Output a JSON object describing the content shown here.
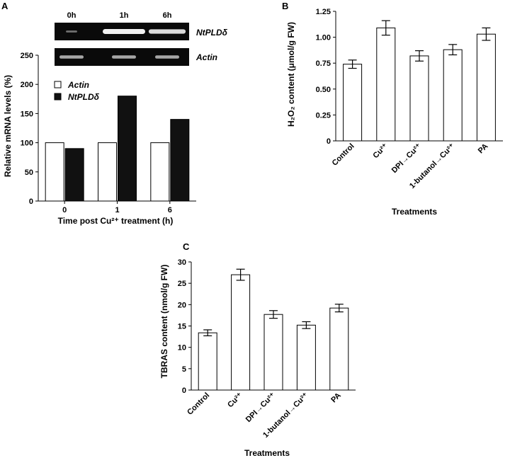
{
  "figure": {
    "panels": [
      "A",
      "B",
      "C"
    ]
  },
  "gel": {
    "lanes": [
      "0h",
      "1h",
      "6h"
    ],
    "rows": [
      {
        "label": "NtPLDδ",
        "band_intensity": [
          0.15,
          1.0,
          0.85
        ]
      },
      {
        "label": "Actin",
        "band_intensity": [
          0.5,
          0.5,
          0.5
        ]
      }
    ],
    "colors": {
      "background": "#0a0a0a",
      "band": "#f2f2f2"
    }
  },
  "chart_data": [
    {
      "type": "bar",
      "panel": "A",
      "categories": [
        "0",
        "1",
        "6"
      ],
      "series": [
        {
          "name": "Actin",
          "values": [
            100,
            100,
            100
          ],
          "color": "#ffffff"
        },
        {
          "name": "NtPLDδ",
          "values": [
            90,
            180,
            140
          ],
          "color": "#111111"
        }
      ],
      "xlabel": "Time post Cu²⁺ treatment (h)",
      "ylabel": "Relative mRNA levels (%)",
      "ylim": [
        0,
        250
      ],
      "yticks": [
        0,
        50,
        100,
        150,
        200,
        250
      ],
      "legend": "top-left",
      "grid": false
    },
    {
      "type": "bar",
      "panel": "B",
      "categories": [
        "Control",
        "Cu²⁺",
        "DPI→Cu²⁺",
        "1-butanol→Cu²⁺",
        "PA"
      ],
      "values": [
        0.74,
        1.09,
        0.82,
        0.88,
        1.03
      ],
      "errors": [
        0.04,
        0.07,
        0.05,
        0.05,
        0.06
      ],
      "xlabel": "Treatments",
      "ylabel": "H₂O₂ content (μmol/g FW)",
      "ylim": [
        0,
        1.25
      ],
      "yticks": [
        "0",
        "0.25",
        "0.50",
        "0.75",
        "1.00",
        "1.25"
      ],
      "ytick_values": [
        0,
        0.25,
        0.5,
        0.75,
        1.0,
        1.25
      ],
      "grid": false
    },
    {
      "type": "bar",
      "panel": "C",
      "categories": [
        "Control",
        "Cu²⁺",
        "DPI→Cu²⁺",
        "1-butanol→Cu²⁺",
        "PA"
      ],
      "values": [
        13.4,
        27.0,
        17.7,
        15.2,
        19.2
      ],
      "errors": [
        0.7,
        1.3,
        0.9,
        0.8,
        0.9
      ],
      "xlabel": "Treatments",
      "ylabel": "TBRAS content (nmol/g FW)",
      "ylim": [
        0,
        30
      ],
      "yticks": [
        0,
        5,
        10,
        15,
        20,
        25,
        30
      ],
      "grid": false
    }
  ]
}
